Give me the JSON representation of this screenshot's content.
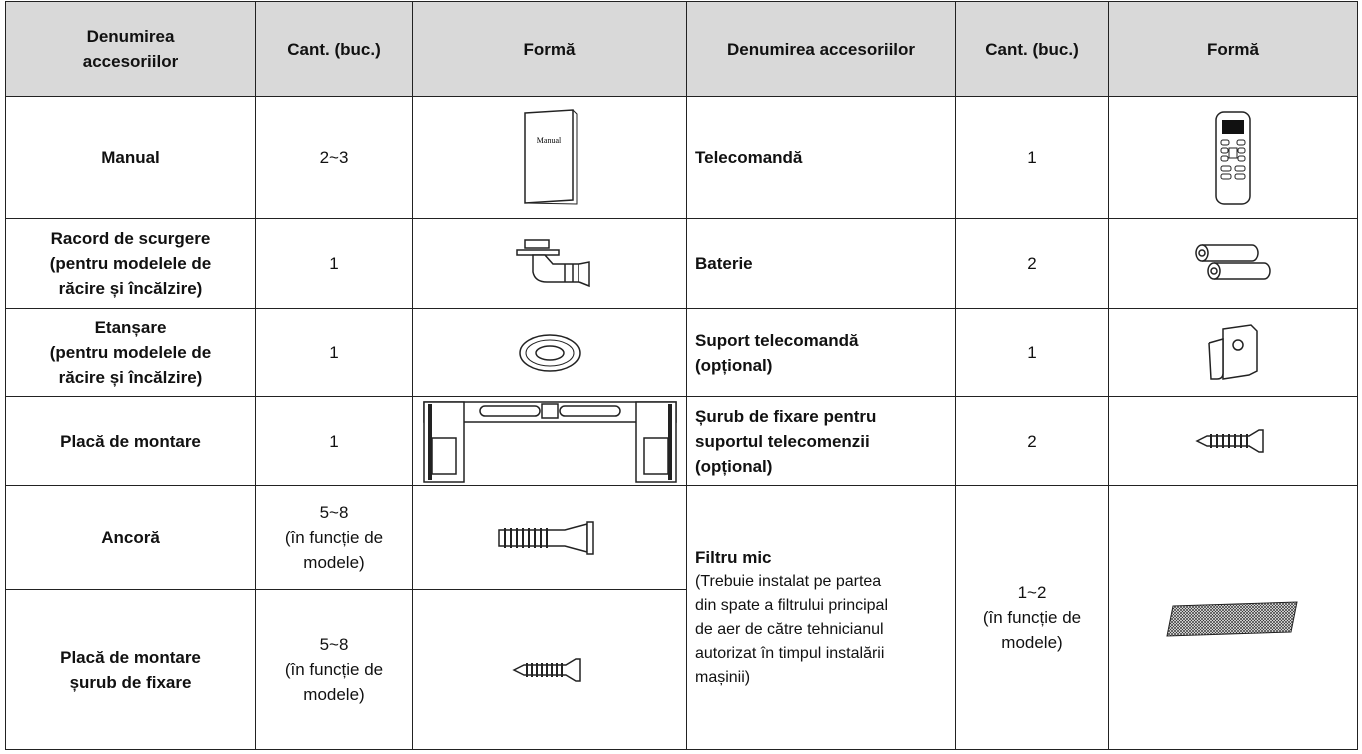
{
  "table": {
    "header": [
      "Denumirea\naccesoriilor",
      "Cant. (buc.)",
      "Formă",
      "Denumirea accesoriilor",
      "Cant. (buc.)",
      "Formă"
    ],
    "rows": [
      {
        "name": "Manual",
        "qty": "2~3",
        "icon_text": "Manual",
        "name2": "Telecomandă",
        "qty2": "1"
      },
      {
        "name": "Racord de scurgere\n(pentru modelele de\nrăcire și încălzire)",
        "qty": "1",
        "name2": "Baterie",
        "qty2": "2"
      },
      {
        "name": "Etanșare\n(pentru modelele de\nrăcire și încălzire)",
        "qty": "1",
        "name2": "Suport telecomandă\n(opțional)",
        "qty2": "1"
      },
      {
        "name": "Placă de montare",
        "qty": "1",
        "name2": "Șurub de fixare pentru\nsuportul telecomenzii\n(opțional)",
        "qty2": "2"
      },
      {
        "name": "Ancoră",
        "qty": "5~8\n(în funcție de\nmodele)",
        "name2": "Filtru mic",
        "note2": "(Trebuie instalat pe partea\ndin spate a filtrului principal\nde aer de către tehnicianul\nautorizat în timpul instalării\nmașinii)",
        "qty2": "1~2\n(în funcție de\nmodele)"
      },
      {
        "name": "Placă de montare\nșurub de fixare",
        "qty": "5~8\n(în funcție de\nmodele)"
      }
    ]
  }
}
